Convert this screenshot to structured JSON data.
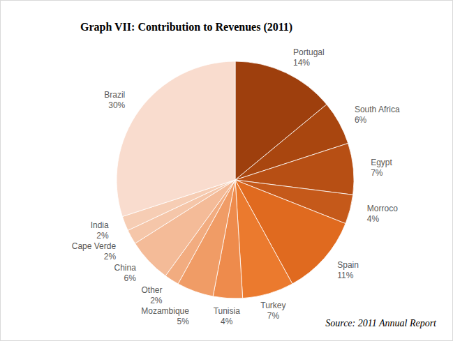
{
  "chart_data": {
    "type": "pie",
    "title": "Graph VII: Contribution to Revenues (2011)",
    "annotations": [
      "Source: 2011 Annual Report"
    ],
    "categories": [
      "Portugal",
      "South Africa",
      "Egypt",
      "Morroco",
      "Spain",
      "Turkey",
      "Tunisia",
      "Mozambique",
      "Other",
      "China",
      "Cape Verde",
      "India",
      "Brazil"
    ],
    "values": [
      14,
      6,
      7,
      4,
      11,
      7,
      4,
      5,
      2,
      6,
      2,
      2,
      30
    ],
    "value_labels": [
      "14%",
      "6%",
      "7%",
      "4%",
      "11%",
      "7%",
      "4%",
      "5%",
      "2%",
      "6%",
      "2%",
      "2%",
      "30%"
    ],
    "colors": [
      "#9e3f0d",
      "#a9460f",
      "#b74f14",
      "#c5591a",
      "#e06a1f",
      "#eb7a2e",
      "#ee8b4c",
      "#f09c66",
      "#f2ac80",
      "#f4bb98",
      "#f5c6a9",
      "#f6cdb4",
      "#f9dcce"
    ],
    "data_labels": true
  }
}
